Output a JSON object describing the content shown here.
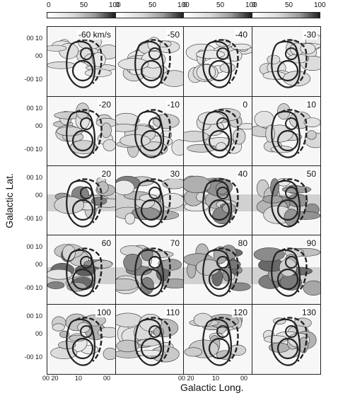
{
  "colorbar": {
    "ticks": [
      "0",
      "50",
      "100"
    ]
  },
  "velocities": [
    "-60 km/s",
    "-50",
    "-40",
    "-30",
    "-20",
    "-10",
    "0",
    "10",
    "20",
    "30",
    "40",
    "50",
    "60",
    "70",
    "80",
    "90",
    "100",
    "110",
    "120",
    "130"
  ],
  "y_ticks": [
    "00 10",
    "00",
    "-00 10"
  ],
  "x_ticks": [
    "00 20",
    "10",
    "00"
  ],
  "y_label": "Galactic Lat.",
  "x_label": "Galactic Long."
}
